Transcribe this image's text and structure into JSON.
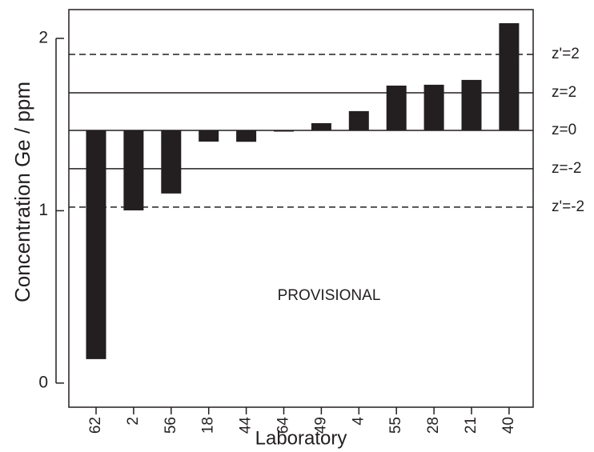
{
  "chart_data": {
    "type": "bar",
    "y_label": "Concentration Ge / ppm",
    "x_label": "Laboratory",
    "annotation": "PROVISIONAL",
    "categories": [
      "62",
      "2",
      "56",
      "18",
      "44",
      "64",
      "49",
      "4",
      "55",
      "28",
      "21",
      "40"
    ],
    "values": [
      0.139,
      1.002,
      1.1,
      1.401,
      1.4,
      1.46,
      1.508,
      1.578,
      1.726,
      1.731,
      1.759,
      2.088
    ],
    "color": "#231f20",
    "ylim": [
      -0.14,
      2.167
    ],
    "yticks": [
      0,
      1,
      2
    ],
    "reference_lines": [
      {
        "label": "z'=2",
        "value": 1.907,
        "style": "dashed"
      },
      {
        "label": "z=2",
        "value": 1.684,
        "style": "solid"
      },
      {
        "label": "z=0",
        "value": 1.466,
        "style": "solid"
      },
      {
        "label": "z=-2",
        "value": 1.244,
        "style": "solid"
      },
      {
        "label": "z'=-2",
        "value": 1.021,
        "style": "dashed"
      }
    ]
  }
}
